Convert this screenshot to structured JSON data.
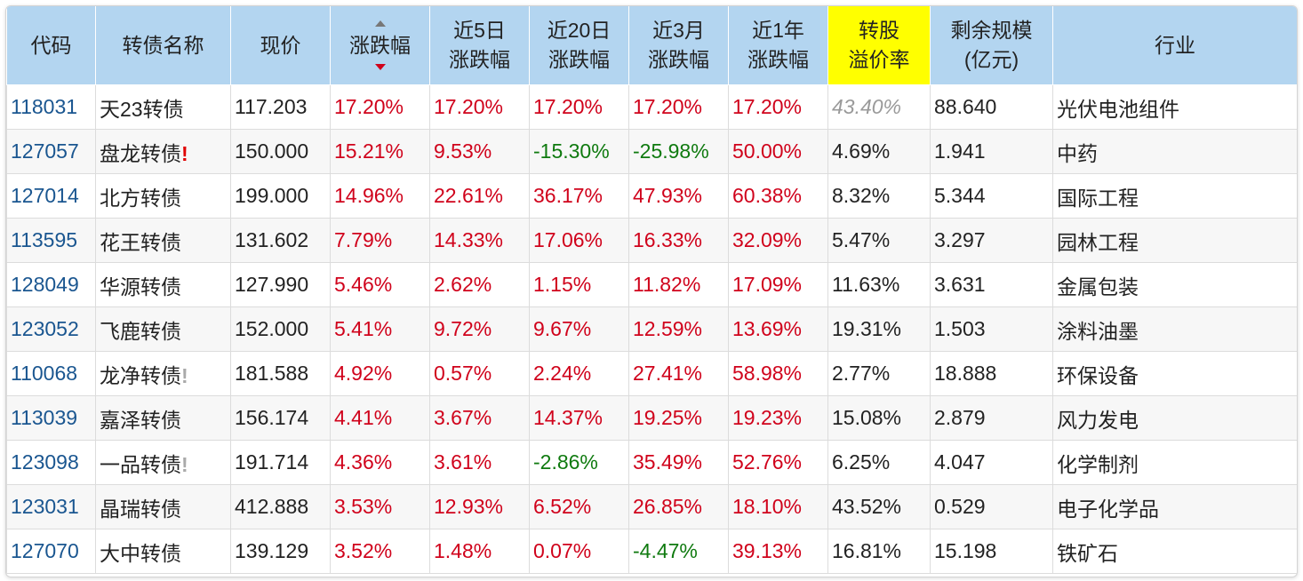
{
  "table": {
    "header": [
      [
        "代码"
      ],
      [
        "转债名称"
      ],
      [
        "现价"
      ],
      [
        "涨跌幅"
      ],
      [
        "近5日",
        "涨跌幅"
      ],
      [
        "近20日",
        "涨跌幅"
      ],
      [
        "近3月",
        "涨跌幅"
      ],
      [
        "近1年",
        "涨跌幅"
      ],
      [
        "转股",
        "溢价率"
      ],
      [
        "剩余规模",
        "(亿元)"
      ],
      [
        "行业"
      ]
    ],
    "highlight_column": 8,
    "sorted_column": 3,
    "rows": [
      {
        "cells": [
          "118031",
          "天23转债",
          "117.203",
          "17.20%",
          "17.20%",
          "17.20%",
          "17.20%",
          "17.20%",
          "43.40%",
          "88.640",
          "光伏电池组件"
        ],
        "premium_tone": "muted"
      },
      {
        "cells": [
          "127057",
          "盘龙转债",
          "150.000",
          "15.21%",
          "9.53%",
          "-15.30%",
          "-25.98%",
          "50.00%",
          "4.69%",
          "1.941",
          "中药"
        ],
        "flag": {
          "text": "!",
          "tone": "alert"
        }
      },
      {
        "cells": [
          "127014",
          "北方转债",
          "199.000",
          "14.96%",
          "22.61%",
          "36.17%",
          "47.93%",
          "60.38%",
          "8.32%",
          "5.344",
          "国际工程"
        ]
      },
      {
        "cells": [
          "113595",
          "花王转债",
          "131.602",
          "7.79%",
          "14.33%",
          "17.06%",
          "16.33%",
          "32.09%",
          "5.47%",
          "3.297",
          "园林工程"
        ]
      },
      {
        "cells": [
          "128049",
          "华源转债",
          "127.990",
          "5.46%",
          "2.62%",
          "1.15%",
          "11.82%",
          "17.09%",
          "11.63%",
          "3.631",
          "金属包装"
        ]
      },
      {
        "cells": [
          "123052",
          "飞鹿转债",
          "152.000",
          "5.41%",
          "9.72%",
          "9.67%",
          "12.59%",
          "13.69%",
          "19.31%",
          "1.503",
          "涂料油墨"
        ]
      },
      {
        "cells": [
          "110068",
          "龙净转债",
          "181.588",
          "4.92%",
          "0.57%",
          "2.24%",
          "27.41%",
          "58.98%",
          "2.77%",
          "18.888",
          "环保设备"
        ],
        "flag": {
          "text": "!",
          "tone": "muted"
        }
      },
      {
        "cells": [
          "113039",
          "嘉泽转债",
          "156.174",
          "4.41%",
          "3.67%",
          "14.37%",
          "19.25%",
          "19.23%",
          "15.08%",
          "2.879",
          "风力发电"
        ]
      },
      {
        "cells": [
          "123098",
          "一品转债",
          "191.714",
          "4.36%",
          "3.61%",
          "-2.86%",
          "35.49%",
          "52.76%",
          "6.25%",
          "4.047",
          "化学制剂"
        ],
        "flag": {
          "text": "!",
          "tone": "muted"
        }
      },
      {
        "cells": [
          "123031",
          "晶瑞转债",
          "412.888",
          "3.53%",
          "12.93%",
          "6.52%",
          "26.85%",
          "18.10%",
          "43.52%",
          "0.529",
          "电子化学品"
        ]
      },
      {
        "cells": [
          "127070",
          "大中转债",
          "139.129",
          "3.52%",
          "1.48%",
          "0.07%",
          "-4.47%",
          "39.13%",
          "16.81%",
          "15.198",
          "铁矿石"
        ]
      }
    ]
  }
}
